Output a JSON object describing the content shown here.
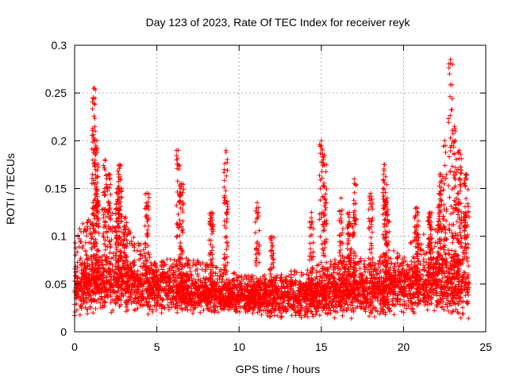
{
  "chart_data": {
    "type": "scatter",
    "title": "Day 123 of 2023, Rate Of TEC Index for receiver reyk",
    "xlabel": "GPS time / hours",
    "ylabel": "ROTI / TECUs",
    "xlim": [
      0,
      25
    ],
    "ylim": [
      0,
      0.3
    ],
    "x_ticks": [
      "0",
      "5",
      "10",
      "15",
      "20",
      "25"
    ],
    "y_ticks": [
      "0",
      "0.05",
      "0.1",
      "0.15",
      "0.2",
      "0.25",
      "0.3"
    ],
    "grid": true,
    "marker": "plus",
    "colors": {
      "points": "#ff0000",
      "grid": "#b0b0b0",
      "axes": "#000000"
    },
    "series": [
      {
        "name": "",
        "x_range": [
          0,
          24
        ],
        "baseline_profile": [
          {
            "x": 0,
            "y_low": 0.015,
            "y_mid": 0.045,
            "y_high": 0.09
          },
          {
            "x": 1.5,
            "y_low": 0.02,
            "y_mid": 0.05,
            "y_high": 0.12
          },
          {
            "x": 3,
            "y_low": 0.02,
            "y_mid": 0.05,
            "y_high": 0.1
          },
          {
            "x": 5,
            "y_low": 0.02,
            "y_mid": 0.045,
            "y_high": 0.07
          },
          {
            "x": 7,
            "y_low": 0.02,
            "y_mid": 0.04,
            "y_high": 0.07
          },
          {
            "x": 10,
            "y_low": 0.02,
            "y_mid": 0.035,
            "y_high": 0.055
          },
          {
            "x": 12,
            "y_low": 0.015,
            "y_mid": 0.035,
            "y_high": 0.055
          },
          {
            "x": 14,
            "y_low": 0.015,
            "y_mid": 0.035,
            "y_high": 0.06
          },
          {
            "x": 16,
            "y_low": 0.015,
            "y_mid": 0.04,
            "y_high": 0.07
          },
          {
            "x": 18,
            "y_low": 0.015,
            "y_mid": 0.04,
            "y_high": 0.07
          },
          {
            "x": 20,
            "y_low": 0.02,
            "y_mid": 0.045,
            "y_high": 0.08
          },
          {
            "x": 22,
            "y_low": 0.02,
            "y_mid": 0.05,
            "y_high": 0.1
          },
          {
            "x": 24,
            "y_low": 0.015,
            "y_mid": 0.05,
            "y_high": 0.12
          }
        ],
        "spikes": [
          {
            "x": 1.15,
            "y_top": 0.255
          },
          {
            "x": 1.25,
            "y_top": 0.21
          },
          {
            "x": 1.35,
            "y_top": 0.19
          },
          {
            "x": 1.85,
            "y_top": 0.18
          },
          {
            "x": 2.1,
            "y_top": 0.165
          },
          {
            "x": 2.6,
            "y_top": 0.15
          },
          {
            "x": 2.75,
            "y_top": 0.175
          },
          {
            "x": 3.1,
            "y_top": 0.12
          },
          {
            "x": 4.4,
            "y_top": 0.145
          },
          {
            "x": 6.3,
            "y_top": 0.19
          },
          {
            "x": 6.5,
            "y_top": 0.155
          },
          {
            "x": 8.3,
            "y_top": 0.125
          },
          {
            "x": 9.2,
            "y_top": 0.19
          },
          {
            "x": 11.1,
            "y_top": 0.135
          },
          {
            "x": 12.0,
            "y_top": 0.1
          },
          {
            "x": 14.4,
            "y_top": 0.125
          },
          {
            "x": 15.0,
            "y_top": 0.2
          },
          {
            "x": 15.2,
            "y_top": 0.185
          },
          {
            "x": 16.2,
            "y_top": 0.14
          },
          {
            "x": 16.7,
            "y_top": 0.125
          },
          {
            "x": 17.0,
            "y_top": 0.16
          },
          {
            "x": 18.0,
            "y_top": 0.145
          },
          {
            "x": 18.85,
            "y_top": 0.175
          },
          {
            "x": 19.0,
            "y_top": 0.14
          },
          {
            "x": 20.8,
            "y_top": 0.13
          },
          {
            "x": 21.6,
            "y_top": 0.125
          },
          {
            "x": 22.2,
            "y_top": 0.165
          },
          {
            "x": 22.5,
            "y_top": 0.2
          },
          {
            "x": 22.85,
            "y_top": 0.285
          },
          {
            "x": 23.1,
            "y_top": 0.215
          },
          {
            "x": 23.4,
            "y_top": 0.19
          },
          {
            "x": 23.8,
            "y_top": 0.165
          }
        ]
      }
    ]
  }
}
